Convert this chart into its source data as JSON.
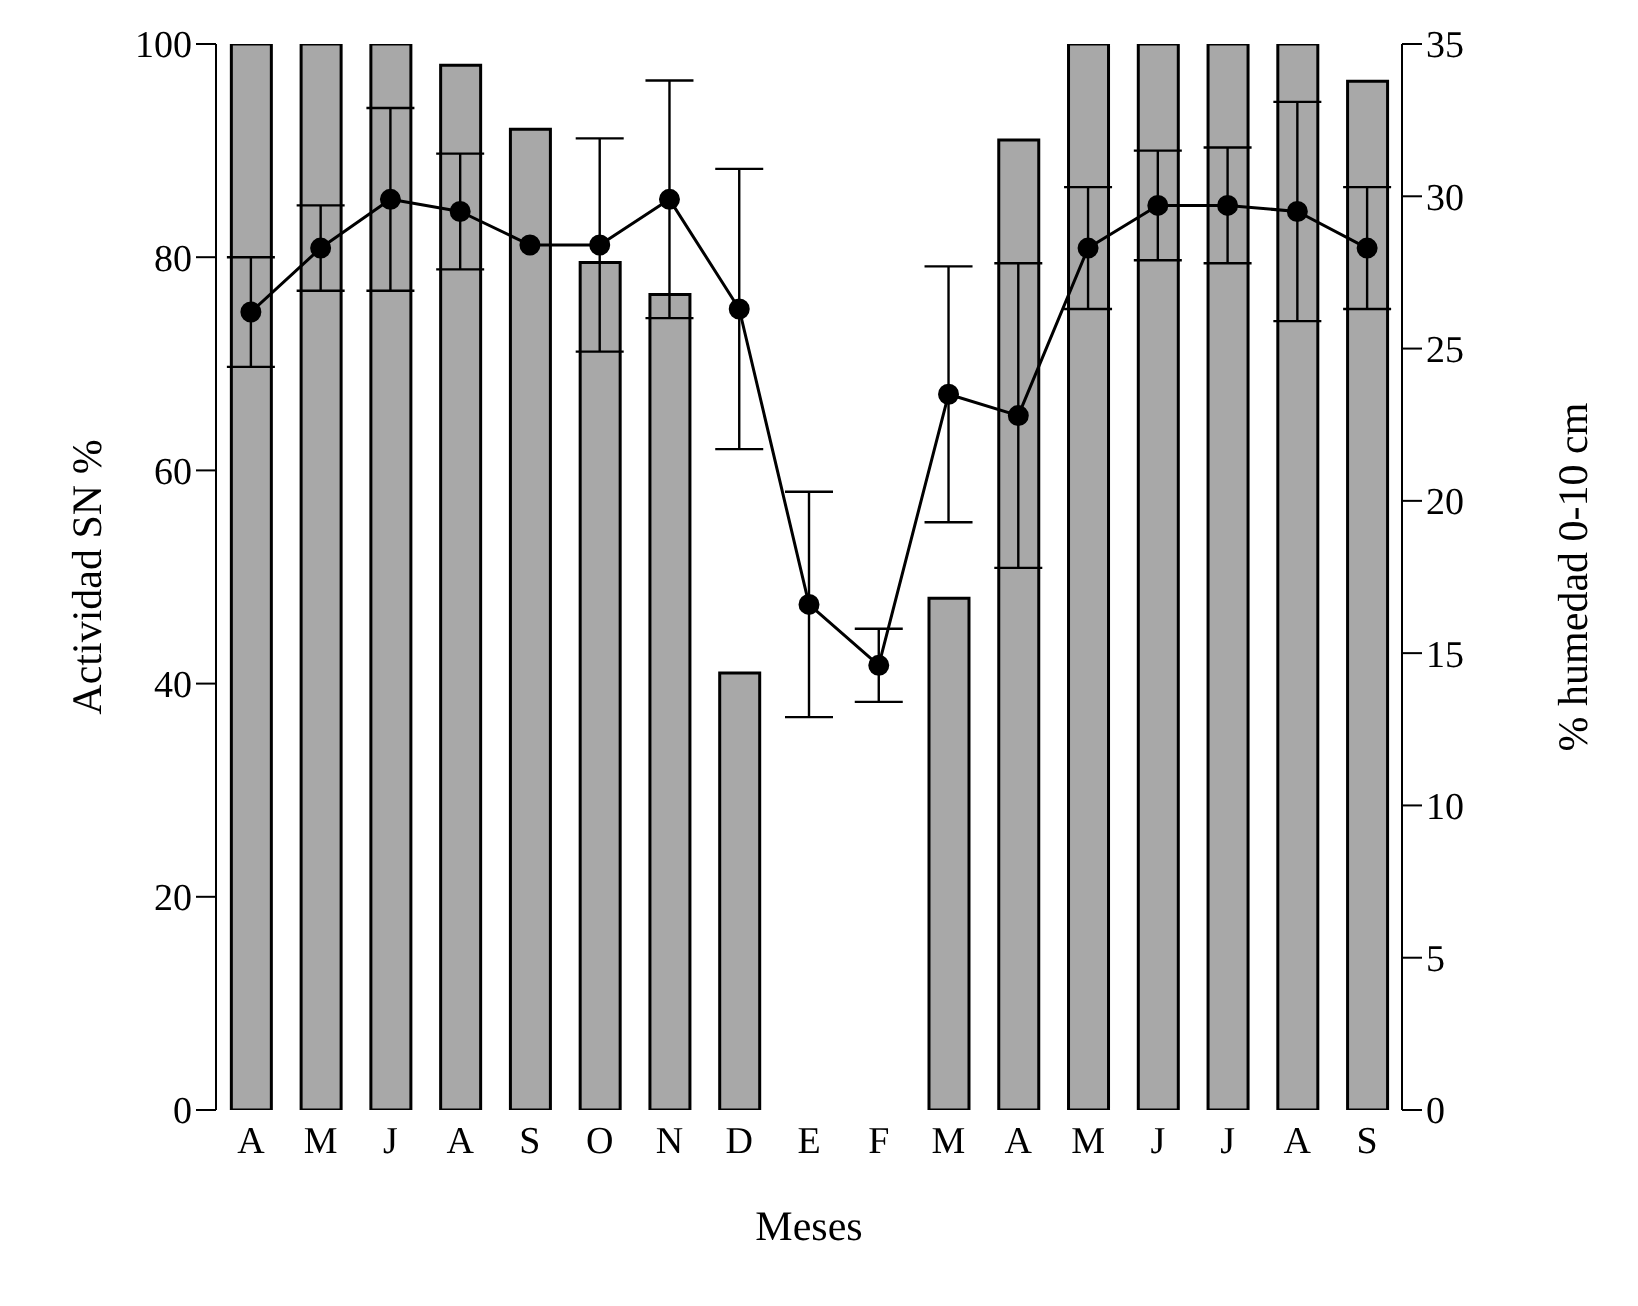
{
  "chart_data": {
    "type": "bar",
    "xlabel": "Meses",
    "ylabel": "Actividad SN %",
    "y2label": "% humedad 0-10 cm",
    "categories": [
      "A",
      "M",
      "J",
      "A",
      "S",
      "O",
      "N",
      "D",
      "E",
      "F",
      "M",
      "A",
      "M",
      "J",
      "J",
      "A",
      "S"
    ],
    "ylim": [
      0,
      100
    ],
    "yticks": [
      0,
      20,
      40,
      60,
      80,
      100
    ],
    "y2lim": [
      0,
      35
    ],
    "y2ticks": [
      0,
      5,
      10,
      15,
      20,
      25,
      30,
      35
    ],
    "grid": false,
    "legend": false,
    "series": [
      {
        "color": "#a8a8a8",
        "values": [
          100,
          100,
          100,
          98,
          92,
          79.5,
          76.5,
          41,
          0,
          0,
          48,
          91,
          100,
          100,
          100,
          100,
          96.5
        ]
      },
      {
        "type": "line",
        "axis": "y2",
        "color": "#000000",
        "marker": "circle",
        "line_style": "solid",
        "values": [
          26.2,
          28.3,
          29.9,
          29.5,
          28.4,
          28.4,
          29.9,
          26.3,
          16.6,
          14.6,
          23.5,
          22.8,
          28.3,
          29.7,
          29.7,
          29.5,
          28.3
        ],
        "errors": [
          1.8,
          1.4,
          3,
          1.9,
          null,
          3.5,
          3.9,
          4.6,
          3.7,
          1.2,
          4.2,
          5,
          2,
          1.8,
          1.9,
          3.6,
          2
        ]
      }
    ]
  }
}
